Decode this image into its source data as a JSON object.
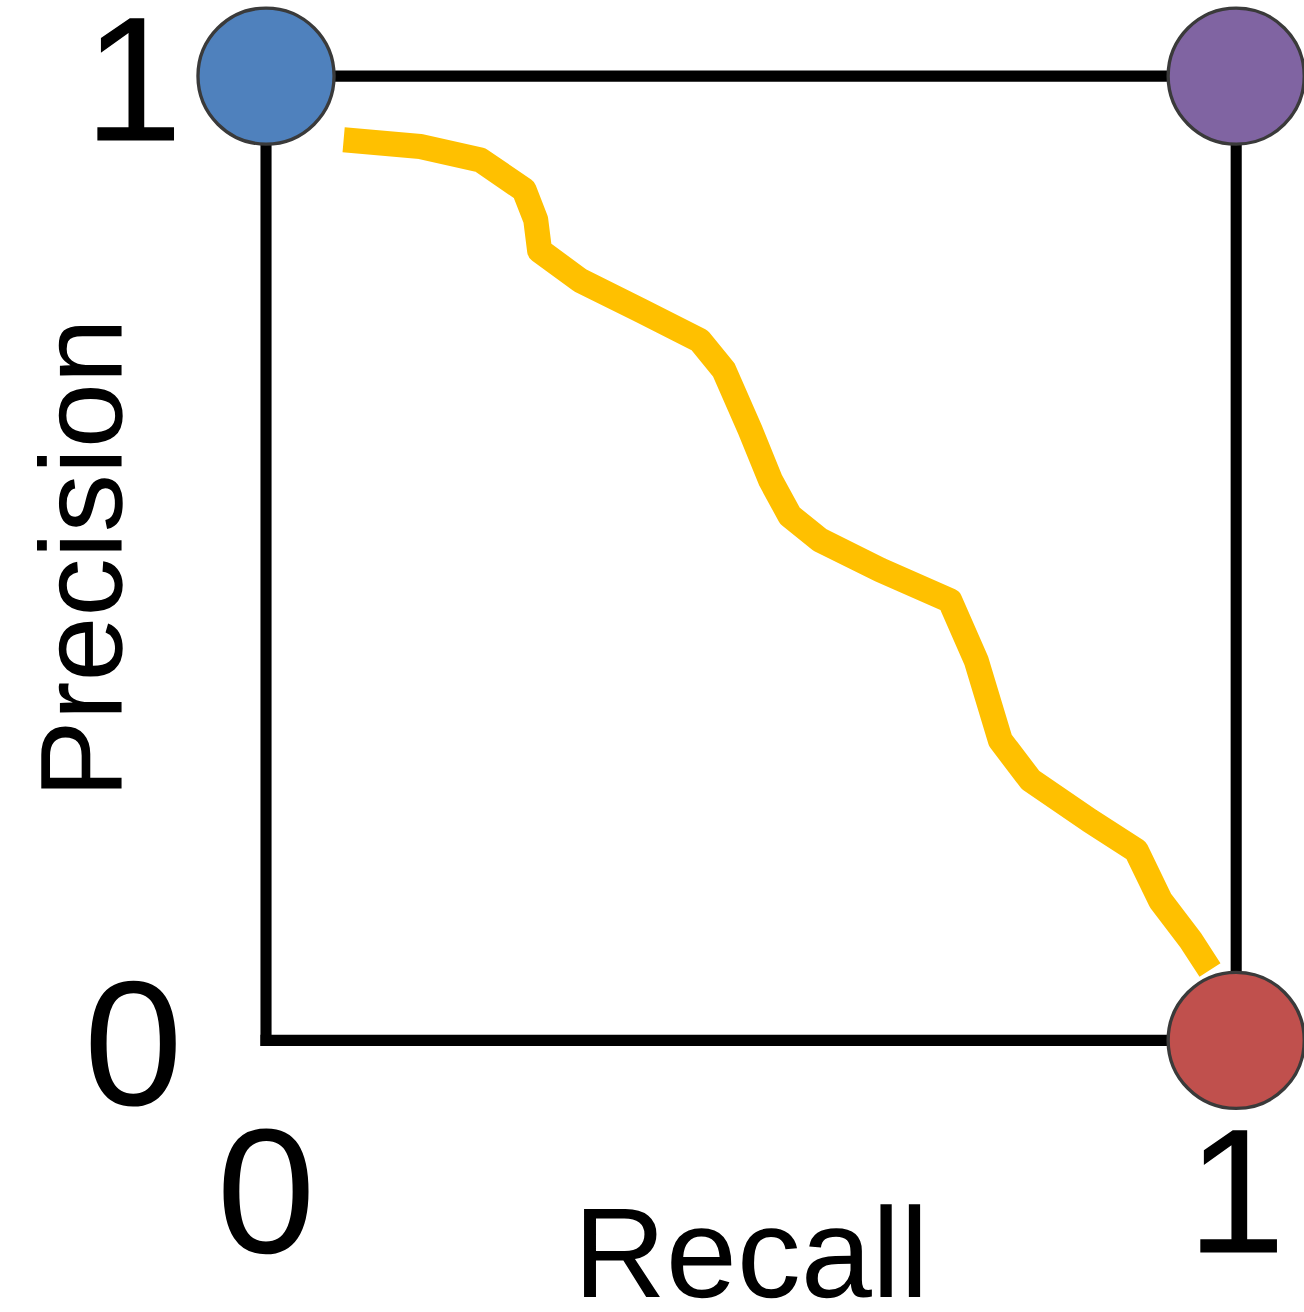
{
  "chart_data": {
    "type": "line",
    "xlabel": "Recall",
    "ylabel": "Precision",
    "marker": "none",
    "xlim": [
      0,
      1
    ],
    "ylim": [
      0,
      1
    ],
    "xticks": [
      0,
      1
    ],
    "yticks": [
      0,
      1
    ],
    "series": [
      {
        "color": "#ffc000",
        "x": [
          0.08,
          0.159,
          0.221,
          0.266,
          0.278,
          0.282,
          0.324,
          0.386,
          0.447,
          0.472,
          0.499,
          0.52,
          0.54,
          0.571,
          0.633,
          0.705,
          0.732,
          0.757,
          0.788,
          0.849,
          0.897,
          0.922,
          0.953,
          0.973
        ],
        "values": [
          0.934,
          0.927,
          0.913,
          0.882,
          0.851,
          0.819,
          0.788,
          0.757,
          0.726,
          0.695,
          0.633,
          0.581,
          0.544,
          0.519,
          0.488,
          0.456,
          0.394,
          0.311,
          0.27,
          0.228,
          0.197,
          0.145,
          0.104,
          0.073
        ]
      },
      {
        "type": "scatter",
        "x": [
          0,
          1,
          1
        ],
        "values": [
          1,
          1,
          0
        ],
        "colors": [
          "#4f81bd",
          "#8064a2",
          "#c0504d"
        ],
        "marker": "circle"
      }
    ]
  }
}
